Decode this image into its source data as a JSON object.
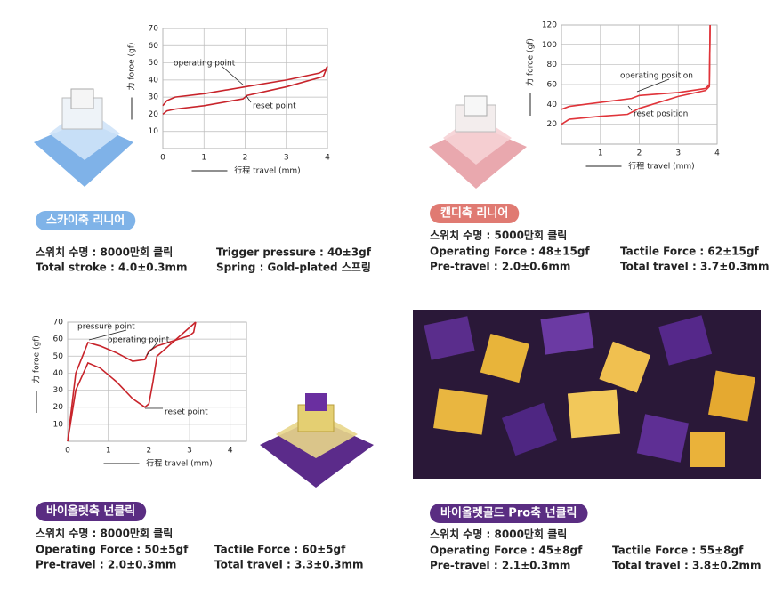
{
  "chart_data": [
    {
      "type": "line",
      "ylabel": "力 foroe (gf)",
      "xlabel": "行程 travel (mm)",
      "xlim": [
        0,
        4
      ],
      "ylim": [
        0,
        70
      ],
      "xticks": [
        0,
        1,
        2,
        3,
        4
      ],
      "yticks": [
        10,
        20,
        30,
        40,
        50,
        60,
        70
      ],
      "grid": true,
      "series": [
        {
          "color": "#c8242b",
          "x": [
            0,
            0.1,
            0.3,
            1,
            2,
            3,
            3.8,
            3.95,
            4
          ],
          "values": [
            25,
            28,
            30,
            32,
            36,
            40,
            44,
            46,
            48
          ]
        },
        {
          "color": "#c8242b",
          "x": [
            0,
            0.1,
            0.3,
            1,
            1.95,
            2.05,
            3,
            3.9,
            4
          ],
          "values": [
            20,
            22,
            23,
            25,
            29,
            31,
            36,
            42,
            48
          ]
        }
      ],
      "annotations": [
        "operating point",
        "reset point"
      ]
    },
    {
      "type": "line",
      "ylabel": "力 foroe (gf)",
      "xlabel": "行程 travel (mm)",
      "xlim": [
        0,
        4
      ],
      "ylim": [
        0,
        120
      ],
      "xticks": [
        1,
        2,
        3,
        4
      ],
      "yticks": [
        20,
        40,
        60,
        80,
        100,
        120
      ],
      "grid": true,
      "series": [
        {
          "color": "#e0343a",
          "x": [
            0,
            0.2,
            1,
            1.8,
            2,
            3,
            3.7,
            3.8,
            3.82
          ],
          "values": [
            35,
            38,
            42,
            46,
            49,
            52,
            56,
            60,
            120
          ]
        },
        {
          "color": "#e0343a",
          "x": [
            0,
            0.2,
            1,
            1.7,
            2,
            3,
            3.7,
            3.8,
            3.82
          ],
          "values": [
            20,
            25,
            28,
            30,
            36,
            48,
            54,
            58,
            120
          ]
        }
      ],
      "annotations": [
        "operating position",
        "reset position"
      ]
    },
    {
      "type": "line",
      "ylabel": "力 foroe (gf)",
      "xlabel": "行程 travel (mm)",
      "xlim": [
        0,
        4.4
      ],
      "ylim": [
        0,
        70
      ],
      "xticks": [
        0,
        1,
        2,
        3,
        4
      ],
      "yticks": [
        10,
        20,
        30,
        40,
        50,
        60,
        70
      ],
      "grid": true,
      "series": [
        {
          "color": "#c8242b",
          "x": [
            0,
            0.2,
            0.5,
            0.8,
            1.2,
            1.6,
            1.9,
            2.0,
            2.2,
            3,
            3.1,
            3.15
          ],
          "values": [
            0,
            40,
            58,
            56,
            52,
            47,
            48,
            53,
            56,
            62,
            64,
            70
          ]
        },
        {
          "color": "#c8242b",
          "x": [
            0,
            0.2,
            0.5,
            0.8,
            1.2,
            1.6,
            1.9,
            2.0,
            2.1,
            2.2,
            3.15
          ],
          "values": [
            0,
            30,
            46,
            43,
            35,
            25,
            20,
            22,
            35,
            50,
            70
          ]
        }
      ],
      "annotations": [
        "pressure point",
        "operating point",
        "reset point"
      ]
    }
  ],
  "products": [
    {
      "name": "스카이축 리니어",
      "rows": [
        [
          "스위치 수명 : 8000만회 클릭",
          "Trigger pressure : 40±3gf"
        ],
        [
          "Total stroke : 4.0±0.3mm",
          "Spring : Gold-plated 스프링"
        ]
      ]
    },
    {
      "name": "캔디축 리니어",
      "rows": [
        [
          "스위치 수명 : 5000만회 클릭"
        ],
        [
          "Operating Force : 48±15gf",
          "Tactile Force : 62±15gf"
        ],
        [
          "Pre-travel : 2.0±0.6mm",
          "Total travel : 3.7±0.3mm"
        ]
      ]
    },
    {
      "name": "바이올렛축 넌클릭",
      "rows": [
        [
          "스위치 수명 : 8000만회 클릭"
        ],
        [
          "Operating Force : 50±5gf",
          "Tactile Force : 60±5gf"
        ],
        [
          "Pre-travel : 2.0±0.3mm",
          "Total travel : 3.3±0.3mm"
        ]
      ]
    },
    {
      "name": "바이올렛골드 Pro축 넌클릭",
      "rows": [
        [
          "스위치 수명 : 8000만회 클릭"
        ],
        [
          "Operating Force : 45±8gf",
          "Tactile Force : 55±8gf"
        ],
        [
          "Pre-travel : 2.1±0.3mm",
          "Total travel : 3.8±0.2mm"
        ]
      ]
    }
  ]
}
